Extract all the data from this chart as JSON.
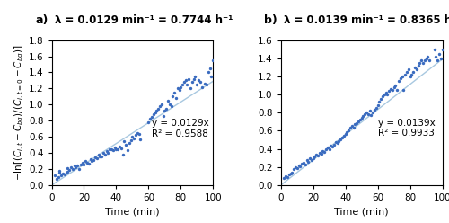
{
  "panel_a": {
    "label": "a)",
    "title": "λ = 0.0129 min⁻¹ = 0.7744 h⁻¹",
    "slope": 0.0129,
    "annotation": "y = 0.0129x\nR² = 0.9588",
    "ylim": [
      0,
      1.8
    ],
    "yticks": [
      0,
      0.2,
      0.4,
      0.6,
      0.8,
      1.0,
      1.2,
      1.4,
      1.6,
      1.8
    ],
    "xlim": [
      0,
      100
    ],
    "xticks": [
      0,
      20,
      40,
      60,
      80,
      100
    ],
    "scatter_x": [
      2,
      3,
      4,
      5,
      5,
      6,
      7,
      8,
      9,
      10,
      10,
      11,
      12,
      13,
      14,
      15,
      16,
      17,
      18,
      19,
      20,
      21,
      22,
      23,
      24,
      25,
      26,
      27,
      28,
      29,
      30,
      31,
      32,
      33,
      34,
      35,
      36,
      37,
      38,
      39,
      40,
      41,
      42,
      43,
      44,
      45,
      46,
      47,
      48,
      49,
      50,
      51,
      52,
      53,
      54,
      55,
      60,
      61,
      62,
      63,
      64,
      65,
      66,
      67,
      68,
      69,
      70,
      71,
      72,
      73,
      74,
      75,
      76,
      77,
      78,
      79,
      80,
      81,
      82,
      83,
      84,
      85,
      86,
      87,
      88,
      89,
      90,
      91,
      92,
      93,
      95,
      96,
      97,
      98,
      99,
      100
    ],
    "scatter_y": [
      0.12,
      0.08,
      0.1,
      0.15,
      0.18,
      0.12,
      0.14,
      0.13,
      0.16,
      0.17,
      0.21,
      0.19,
      0.22,
      0.2,
      0.24,
      0.22,
      0.24,
      0.2,
      0.26,
      0.28,
      0.25,
      0.3,
      0.28,
      0.27,
      0.32,
      0.3,
      0.31,
      0.34,
      0.33,
      0.38,
      0.36,
      0.35,
      0.4,
      0.38,
      0.42,
      0.4,
      0.44,
      0.45,
      0.43,
      0.47,
      0.45,
      0.44,
      0.48,
      0.46,
      0.38,
      0.55,
      0.5,
      0.43,
      0.52,
      0.56,
      0.6,
      0.58,
      0.62,
      0.65,
      0.63,
      0.57,
      0.78,
      0.82,
      0.85,
      0.88,
      0.9,
      0.92,
      0.95,
      0.98,
      1.0,
      0.86,
      0.92,
      0.95,
      1.05,
      1.0,
      0.98,
      1.1,
      1.15,
      1.08,
      1.2,
      1.18,
      1.22,
      1.25,
      1.28,
      1.3,
      1.25,
      1.32,
      1.2,
      1.28,
      1.32,
      1.35,
      1.25,
      1.3,
      1.28,
      1.22,
      1.26,
      1.25,
      1.4,
      1.45,
      1.35,
      1.55
    ]
  },
  "panel_b": {
    "label": "b)",
    "title": "λ = 0.0139 min⁻¹ = 0.8365 h⁻¹",
    "slope": 0.0139,
    "annotation": "y = 0.0139x\nR² = 0.9933",
    "ylim": [
      0,
      1.6
    ],
    "yticks": [
      0,
      0.2,
      0.4,
      0.6,
      0.8,
      1.0,
      1.2,
      1.4,
      1.6
    ],
    "xlim": [
      0,
      100
    ],
    "xticks": [
      0,
      20,
      40,
      60,
      80,
      100
    ],
    "scatter_x": [
      2,
      3,
      4,
      5,
      6,
      7,
      8,
      9,
      10,
      11,
      12,
      13,
      14,
      15,
      16,
      17,
      18,
      19,
      20,
      21,
      22,
      23,
      24,
      25,
      26,
      27,
      28,
      29,
      30,
      31,
      32,
      33,
      34,
      35,
      36,
      37,
      38,
      39,
      40,
      41,
      42,
      43,
      44,
      45,
      46,
      47,
      48,
      49,
      50,
      51,
      52,
      53,
      54,
      55,
      56,
      57,
      58,
      59,
      60,
      61,
      62,
      63,
      64,
      65,
      66,
      67,
      68,
      69,
      70,
      71,
      72,
      73,
      74,
      75,
      76,
      77,
      78,
      79,
      80,
      81,
      82,
      83,
      84,
      85,
      86,
      87,
      88,
      89,
      90,
      91,
      92,
      95,
      96,
      97,
      98,
      99,
      100
    ],
    "scatter_y": [
      0.08,
      0.1,
      0.09,
      0.12,
      0.13,
      0.14,
      0.18,
      0.2,
      0.19,
      0.22,
      0.21,
      0.24,
      0.25,
      0.23,
      0.28,
      0.26,
      0.3,
      0.28,
      0.3,
      0.32,
      0.34,
      0.33,
      0.36,
      0.35,
      0.38,
      0.37,
      0.4,
      0.42,
      0.4,
      0.44,
      0.43,
      0.45,
      0.47,
      0.46,
      0.48,
      0.5,
      0.52,
      0.54,
      0.56,
      0.58,
      0.6,
      0.63,
      0.65,
      0.63,
      0.67,
      0.68,
      0.7,
      0.72,
      0.74,
      0.76,
      0.78,
      0.8,
      0.78,
      0.82,
      0.77,
      0.8,
      0.83,
      0.85,
      0.88,
      0.92,
      0.95,
      0.98,
      1.0,
      1.02,
      1.0,
      1.04,
      1.06,
      1.05,
      1.08,
      1.1,
      1.05,
      1.15,
      1.18,
      1.2,
      1.05,
      1.22,
      1.25,
      1.28,
      1.2,
      1.22,
      1.25,
      1.3,
      1.28,
      1.32,
      1.35,
      1.38,
      1.35,
      1.38,
      1.4,
      1.42,
      1.38,
      1.5,
      1.42,
      1.38,
      1.45,
      1.4,
      1.5
    ]
  },
  "dot_color": "#3a6bbf",
  "line_color": "#a8c8e0",
  "dot_size": 6,
  "xlabel": "Time (min)",
  "title_fontsize": 8.5,
  "label_fontsize": 8,
  "annot_fontsize": 7.5,
  "tick_fontsize": 7.5
}
